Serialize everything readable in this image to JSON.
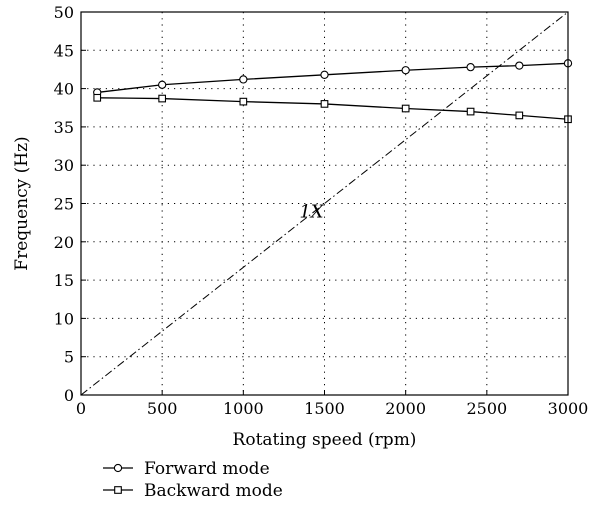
{
  "chart_data": {
    "type": "line",
    "xlabel": "Rotating speed (rpm)",
    "ylabel": "Frequency (Hz)",
    "xlim": [
      0,
      3000
    ],
    "ylim": [
      0,
      50
    ],
    "xticks": [
      0,
      500,
      1000,
      1500,
      2000,
      2500,
      3000
    ],
    "yticks": [
      0,
      5,
      10,
      15,
      20,
      25,
      30,
      35,
      40,
      45,
      50
    ],
    "grid": true,
    "legend_position": "bottom-left, below plot",
    "series": [
      {
        "name": "Forward mode",
        "marker": "circle",
        "x": [
          100,
          500,
          1000,
          1500,
          2000,
          2400,
          2700,
          3000
        ],
        "y": [
          39.5,
          40.5,
          41.2,
          41.8,
          42.4,
          42.8,
          43.0,
          43.3
        ]
      },
      {
        "name": "Backward mode",
        "marker": "square",
        "x": [
          100,
          500,
          1000,
          1500,
          2000,
          2400,
          2700,
          3000
        ],
        "y": [
          38.8,
          38.7,
          38.3,
          38.0,
          37.4,
          37.0,
          36.5,
          36.0
        ]
      },
      {
        "name": "1X",
        "style": "dash-dot",
        "x": [
          0,
          3000
        ],
        "y": [
          0,
          50
        ]
      }
    ],
    "annotations": [
      {
        "text": "1X",
        "x": 1500,
        "y": 23.2
      }
    ]
  }
}
